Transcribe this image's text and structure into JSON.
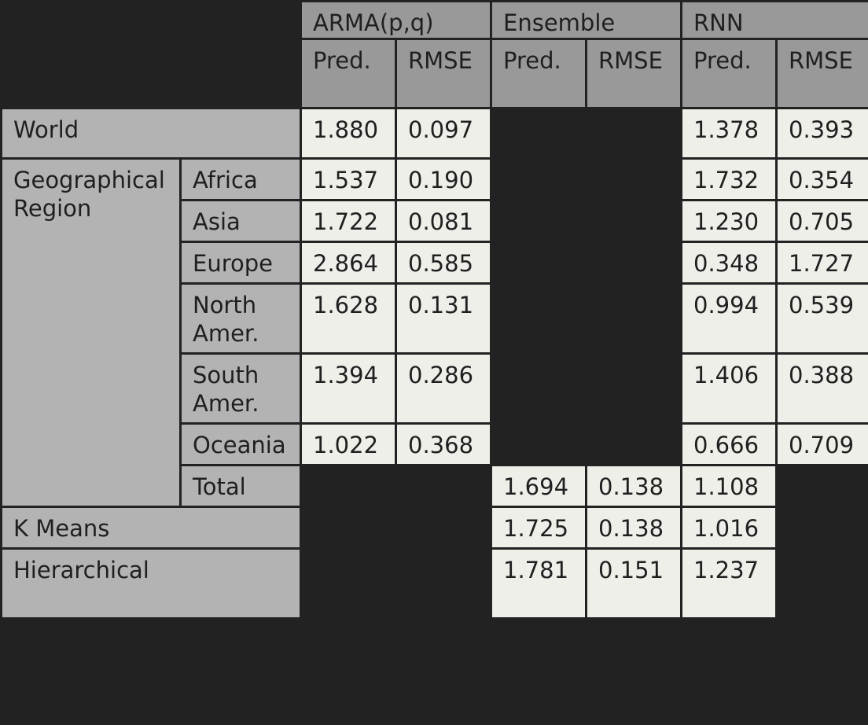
{
  "header": {
    "groups": {
      "arma": "ARMA(p,q)",
      "ensemble": "Ensemble",
      "rnn": "RNN"
    },
    "sub": {
      "pred": "Pred.",
      "rmse": "RMSE"
    }
  },
  "rows": {
    "world": {
      "label": "World",
      "arma_pred": "1.880",
      "arma_rmse": "0.097",
      "rnn_pred": "1.378",
      "rnn_rmse": "0.393"
    },
    "geo_label": "Geographical Region",
    "africa": {
      "label": "Africa",
      "arma_pred": "1.537",
      "arma_rmse": "0.190",
      "rnn_pred": "1.732",
      "rnn_rmse": "0.354"
    },
    "asia": {
      "label": "Asia",
      "arma_pred": "1.722",
      "arma_rmse": "0.081",
      "rnn_pred": "1.230",
      "rnn_rmse": "0.705"
    },
    "europe": {
      "label": "Europe",
      "arma_pred": "2.864",
      "arma_rmse": "0.585",
      "rnn_pred": "0.348",
      "rnn_rmse": "1.727"
    },
    "north_amer": {
      "label": "North Amer.",
      "arma_pred": "1.628",
      "arma_rmse": "0.131",
      "rnn_pred": "0.994",
      "rnn_rmse": "0.539"
    },
    "south_amer": {
      "label": "South Amer.",
      "arma_pred": "1.394",
      "arma_rmse": "0.286",
      "rnn_pred": "1.406",
      "rnn_rmse": "0.388"
    },
    "oceania": {
      "label": "Oceania",
      "arma_pred": "1.022",
      "arma_rmse": "0.368",
      "rnn_pred": "0.666",
      "rnn_rmse": "0.709"
    },
    "total": {
      "label": "Total",
      "ens_pred": "1.694",
      "ens_rmse": "0.138",
      "rnn_pred": "1.108"
    },
    "kmeans": {
      "label": "K Means",
      "ens_pred": "1.725",
      "ens_rmse": "0.138",
      "rnn_pred": "1.016"
    },
    "hier": {
      "label": "Hierarchical",
      "ens_pred": "1.781",
      "ens_rmse": "0.151",
      "rnn_pred": "1.237"
    }
  }
}
